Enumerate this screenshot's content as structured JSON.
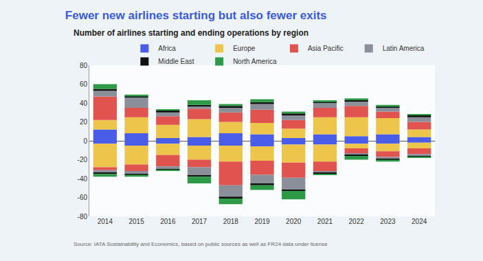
{
  "chart_data": {
    "type": "bar",
    "title": "Fewer new airlines starting but also fewer exits",
    "subtitle": "Number of airlines starting and ending operations by region",
    "source": "Source: IATA Sustainability and Economics, based on public sources as well as FR24 data under license",
    "categories": [
      "2014",
      "2015",
      "2016",
      "2017",
      "2018",
      "2019",
      "2020",
      "2021",
      "2022",
      "2023",
      "2024"
    ],
    "series": [
      {
        "name": "Africa",
        "color": "#4a5de8",
        "values": [
          12,
          8,
          3,
          4,
          8,
          7,
          3,
          7,
          5,
          7,
          4
        ],
        "ending_values": [
          -3,
          -5,
          -3,
          -5,
          -5,
          -6,
          -4,
          -4,
          -3,
          -3,
          -2
        ]
      },
      {
        "name": "Europe",
        "color": "#ecc54a",
        "values": [
          10,
          17,
          14,
          19,
          12,
          12,
          10,
          18,
          20,
          17,
          8
        ],
        "ending_values": [
          -25,
          -20,
          -12,
          -15,
          -17,
          -15,
          -19,
          -18,
          -5,
          -8,
          -6
        ]
      },
      {
        "name": "Asia Pacific",
        "color": "#e0534f",
        "values": [
          25,
          10,
          9,
          11,
          10,
          14,
          9,
          10,
          12,
          7,
          8
        ],
        "ending_values": [
          -3,
          -7,
          -12,
          -8,
          -25,
          -15,
          -16,
          -10,
          -5,
          -6,
          -6
        ]
      },
      {
        "name": "Latin America",
        "color": "#8a8f99",
        "values": [
          6,
          11,
          4,
          3,
          5,
          6,
          5,
          5,
          5,
          4,
          5
        ],
        "ending_values": [
          -3,
          -3,
          -3,
          -9,
          -12,
          -9,
          -13,
          -2,
          -2,
          -2,
          -2
        ]
      },
      {
        "name": "Middle East",
        "color": "#111111",
        "values": [
          2,
          1,
          2,
          1,
          2,
          2,
          2,
          1,
          1,
          1,
          2
        ],
        "ending_values": [
          -1,
          -1,
          -1,
          -1,
          -2,
          -2,
          -1,
          -1,
          -1,
          -1,
          -1
        ]
      },
      {
        "name": "North America",
        "color": "#2e9a48",
        "values": [
          5,
          2,
          1,
          5,
          2,
          3,
          2,
          2,
          2,
          2,
          1
        ],
        "ending_values": [
          -3,
          -2,
          -1,
          -7,
          -6,
          -5,
          -9,
          -1,
          -4,
          -2,
          -1
        ]
      }
    ],
    "ylim": [
      -80,
      80
    ],
    "yticks": [
      -80,
      -60,
      -40,
      -20,
      0,
      20,
      40,
      60,
      80
    ],
    "stacked": true,
    "grid": false,
    "legend": "top"
  }
}
